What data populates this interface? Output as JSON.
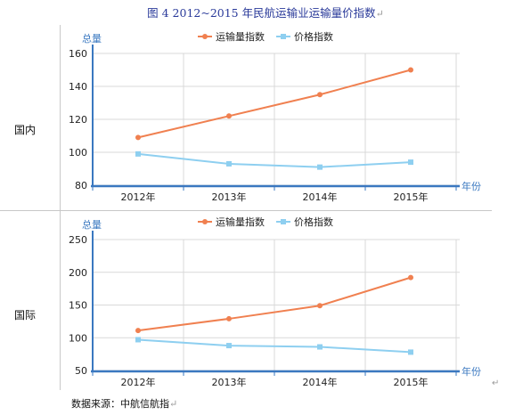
{
  "caption": {
    "text": "图 4   2012~2015 年民航运输业运输量价指数",
    "mark": "↵"
  },
  "rows": [
    {
      "label": "国内"
    },
    {
      "label": "国际"
    }
  ],
  "source": {
    "text": "数据来源：中航信航指",
    "mark": "↵"
  },
  "colors": {
    "volume": "#f08050",
    "price": "#8ecff0",
    "axis": "#3a78c0",
    "axis_title": "#3a78c0"
  },
  "chart_data": [
    {
      "type": "line",
      "title": "",
      "categories": [
        "2012年",
        "2013年",
        "2014年",
        "2015年"
      ],
      "xlabel": "年份",
      "ylabel": "总量",
      "ylim": [
        80,
        160
      ],
      "yticks": [
        80,
        100,
        120,
        140,
        160
      ],
      "grid": true,
      "legend_position": "top-center",
      "series": [
        {
          "name": "运输量指数",
          "marker": "circle",
          "color": "#f08050",
          "values": [
            109,
            122,
            135,
            150
          ]
        },
        {
          "name": "价格指数",
          "marker": "square",
          "color": "#8ecff0",
          "values": [
            99,
            93,
            91,
            94
          ]
        }
      ]
    },
    {
      "type": "line",
      "title": "",
      "categories": [
        "2012年",
        "2013年",
        "2014年",
        "2015年"
      ],
      "xlabel": "年份",
      "ylabel": "总量",
      "ylim": [
        50,
        250
      ],
      "yticks": [
        50,
        100,
        150,
        200,
        250
      ],
      "grid": true,
      "legend_position": "top-center",
      "series": [
        {
          "name": "运输量指数",
          "marker": "circle",
          "color": "#f08050",
          "values": [
            111,
            129,
            149,
            192
          ]
        },
        {
          "name": "价格指数",
          "marker": "square",
          "color": "#8ecff0",
          "values": [
            97,
            88,
            86,
            78
          ]
        }
      ]
    }
  ]
}
